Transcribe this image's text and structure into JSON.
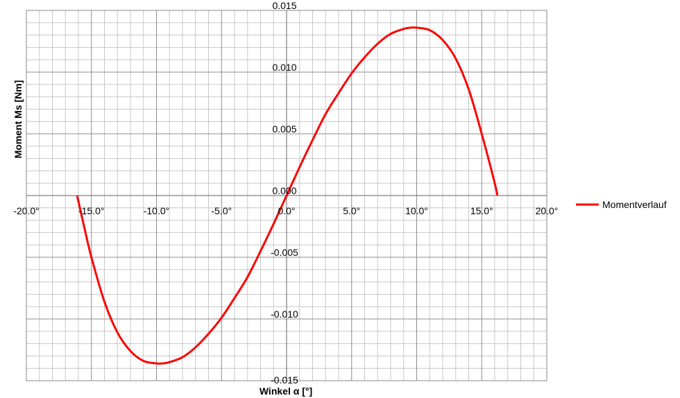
{
  "chart_data": {
    "type": "line",
    "title": "",
    "xlabel": "Winkel  α [°]",
    "ylabel": "Moment Ms [Nm]",
    "xlim": [
      -20,
      20
    ],
    "ylim": [
      -0.015,
      0.015
    ],
    "x_tick_labels": [
      "-20.0°",
      "-15.0°",
      "-10.0°",
      "-5.0°",
      "0.0°",
      "5.0°",
      "10.0°",
      "15.0°",
      "20.0°"
    ],
    "y_tick_labels": [
      "-0.015",
      "-0.010",
      "-0.005",
      "0.000",
      "0.005",
      "0.010",
      "0.015"
    ],
    "grid": true,
    "legend_position": "right",
    "series": [
      {
        "name": "Momentverlauf",
        "color": "#ff0000",
        "x": [
          -16.1,
          -15.5,
          -15.0,
          -14.0,
          -13.0,
          -12.0,
          -11.0,
          -10.0,
          -9.5,
          -9.0,
          -8.0,
          -7.0,
          -6.0,
          -5.0,
          -4.0,
          -3.0,
          -2.0,
          -1.0,
          0.0,
          1.0,
          2.0,
          3.0,
          4.0,
          5.0,
          6.0,
          7.0,
          8.0,
          9.0,
          9.5,
          10.0,
          11.0,
          12.0,
          13.0,
          14.0,
          15.0,
          16.0,
          16.2
        ],
        "y": [
          0.0,
          -0.0028,
          -0.005,
          -0.0086,
          -0.0111,
          -0.0126,
          -0.0134,
          -0.0136,
          -0.0136,
          -0.0135,
          -0.0131,
          -0.0123,
          -0.0112,
          -0.0099,
          -0.0083,
          -0.0066,
          -0.0045,
          -0.0023,
          0.0,
          0.0023,
          0.0045,
          0.0066,
          0.0083,
          0.0099,
          0.0112,
          0.0123,
          0.0131,
          0.0135,
          0.0136,
          0.0136,
          0.0134,
          0.0126,
          0.0111,
          0.0086,
          0.005,
          0.001,
          0.0
        ]
      }
    ]
  }
}
